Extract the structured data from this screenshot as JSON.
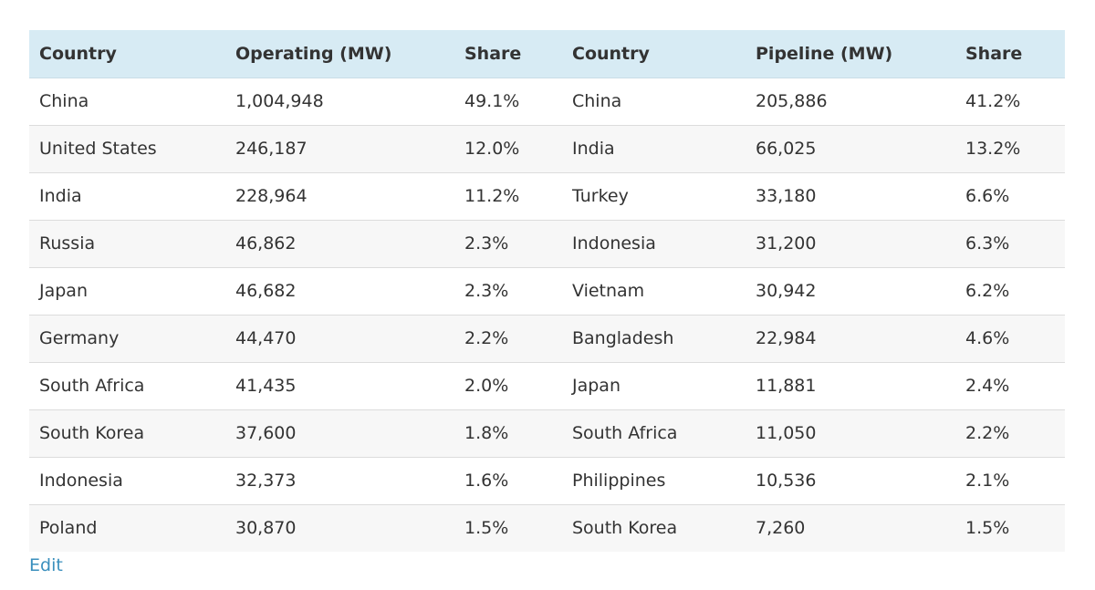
{
  "table": {
    "headers": [
      "Country",
      "Operating (MW)",
      "Share",
      "Country",
      "Pipeline (MW)",
      "Share"
    ],
    "rows": [
      [
        "China",
        "1,004,948",
        "49.1%",
        "China",
        "205,886",
        "41.2%"
      ],
      [
        "United States",
        "246,187",
        "12.0%",
        "India",
        "66,025",
        "13.2%"
      ],
      [
        "India",
        "228,964",
        "11.2%",
        "Turkey",
        "33,180",
        "6.6%"
      ],
      [
        "Russia",
        "46,862",
        "2.3%",
        "Indonesia",
        "31,200",
        "6.3%"
      ],
      [
        "Japan",
        "46,682",
        "2.3%",
        "Vietnam",
        "30,942",
        "6.2%"
      ],
      [
        "Germany",
        "44,470",
        "2.2%",
        "Bangladesh",
        "22,984",
        "4.6%"
      ],
      [
        "South Africa",
        "41,435",
        "2.0%",
        "Japan",
        "11,881",
        "2.4%"
      ],
      [
        "South Korea",
        "37,600",
        "1.8%",
        "South Africa",
        "11,050",
        "2.2%"
      ],
      [
        "Indonesia",
        "32,373",
        "1.6%",
        "Philippines",
        "10,536",
        "2.1%"
      ],
      [
        "Poland",
        "30,870",
        "1.5%",
        "South Korea",
        "7,260",
        "1.5%"
      ]
    ]
  },
  "edit_label": "Edit",
  "colors": {
    "header_bg": "#d7ebf4",
    "row_alt_bg": "#f7f7f7",
    "link": "#3a8fbd",
    "text": "#333333"
  }
}
